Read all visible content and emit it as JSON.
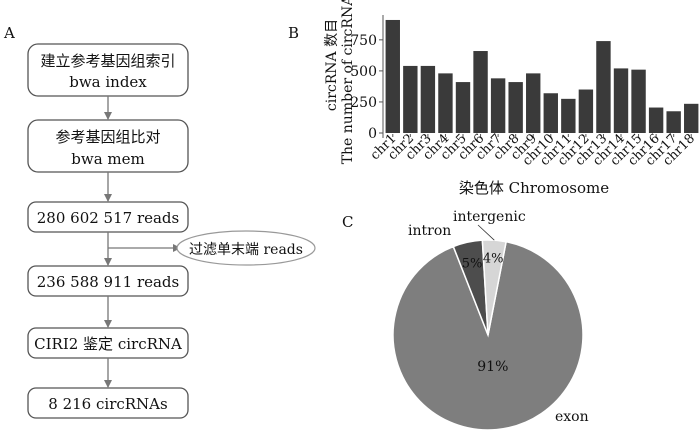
{
  "panels": {
    "a": {
      "label": "A",
      "steps": [
        {
          "line1": "建立参考基因组索引",
          "line2": "bwa index"
        },
        {
          "line1": "参考基因组比对",
          "line2": "bwa mem"
        },
        {
          "line1": "280 602 517 reads",
          "line2": ""
        },
        {
          "line1": "236 588 911 reads",
          "line2": ""
        },
        {
          "line1": "CIRI2 鉴定 circRNA",
          "line2": ""
        },
        {
          "line1": "8 216 circRNAs",
          "line2": ""
        }
      ],
      "filter_label": "过滤单末端 reads"
    },
    "b": {
      "label": "B"
    },
    "c": {
      "label": "C"
    }
  },
  "chart_data": [
    {
      "type": "bar",
      "panel": "B",
      "title": "",
      "categories": [
        "chr1",
        "chr2",
        "chr3",
        "chr4",
        "chr5",
        "chr6",
        "chr7",
        "chr8",
        "chr9",
        "chr10",
        "chr11",
        "chr12",
        "chr13",
        "chr14",
        "chr15",
        "chr16",
        "chr17",
        "chr18"
      ],
      "values": [
        910,
        540,
        540,
        480,
        410,
        660,
        440,
        410,
        480,
        320,
        275,
        350,
        740,
        520,
        510,
        205,
        175,
        235
      ],
      "xlabel": "染色体 Chromosome",
      "ylabel_line1": "circRNA 数目",
      "ylabel_line2": "The number of circRNA",
      "ylim": [
        0,
        950
      ],
      "yticks": [
        0,
        250,
        500,
        750
      ],
      "bar_color": "#3a3a3a"
    },
    {
      "type": "pie",
      "panel": "C",
      "slices": [
        {
          "name": "exon",
          "value": 91,
          "pct_label": "91%",
          "color": "#7e7e7e"
        },
        {
          "name": "intron",
          "value": 5,
          "pct_label": "5%",
          "color": "#4d4d4d"
        },
        {
          "name": "intergenic",
          "value": 4,
          "pct_label": "4%",
          "color": "#d6d6d6"
        }
      ]
    }
  ]
}
